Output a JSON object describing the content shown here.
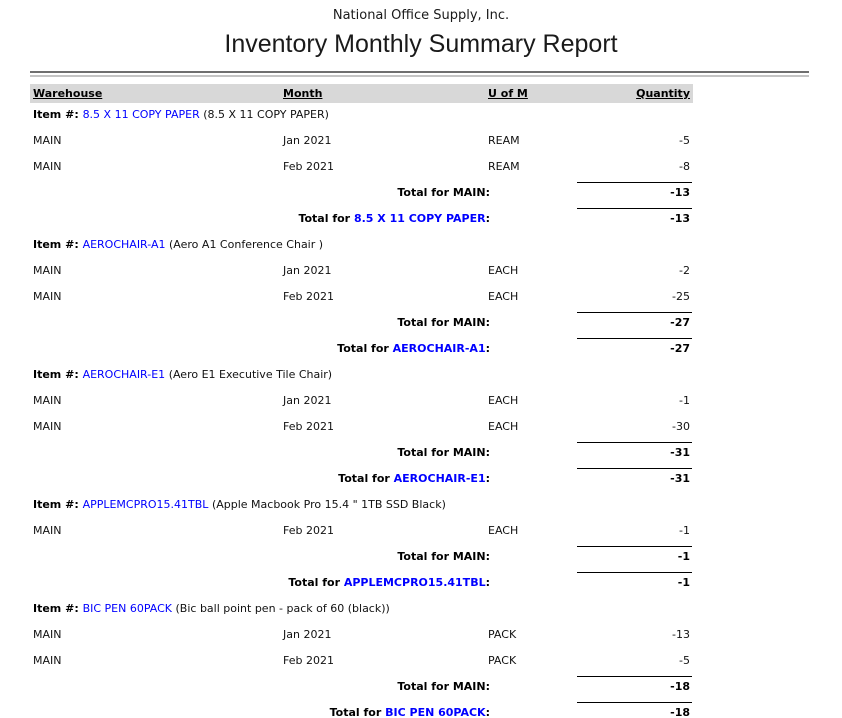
{
  "page": {
    "company": "National Office Supply, Inc.",
    "title": "Inventory Monthly Summary Report"
  },
  "colors": {
    "link_blue": "#0000ff",
    "header_bar_bg": "#d8d8d8",
    "rule_dark": "#6f6f6f",
    "rule_light": "#c4c4c4"
  },
  "table": {
    "headers": {
      "warehouse": "Warehouse",
      "month": "Month",
      "uofm": "U of M",
      "quantity": "Quantity"
    },
    "sections": [
      {
        "item": {
          "prefix": "Item #:",
          "code": "8.5 X 11 COPY PAPER",
          "desc": "(8.5 X 11 COPY PAPER)"
        },
        "rows": [
          {
            "warehouse": "MAIN",
            "month": "Jan 2021",
            "uofm": "REAM",
            "qty": "-5"
          },
          {
            "warehouse": "MAIN",
            "month": "Feb 2021",
            "uofm": "REAM",
            "qty": "-8"
          }
        ],
        "warehouse_total": {
          "label": "Total for MAIN:",
          "qty": "-13"
        },
        "item_total": {
          "prefix": "Total for ",
          "code": "8.5 X 11 COPY PAPER",
          "suffix": ":",
          "qty": "-13"
        }
      },
      {
        "item": {
          "prefix": "Item #:",
          "code": "AEROCHAIR-A1",
          "desc": "(Aero A1 Conference Chair )"
        },
        "rows": [
          {
            "warehouse": "MAIN",
            "month": "Jan 2021",
            "uofm": "EACH",
            "qty": "-2"
          },
          {
            "warehouse": "MAIN",
            "month": "Feb 2021",
            "uofm": "EACH",
            "qty": "-25"
          }
        ],
        "warehouse_total": {
          "label": "Total for MAIN:",
          "qty": "-27"
        },
        "item_total": {
          "prefix": "Total for ",
          "code": "AEROCHAIR-A1",
          "suffix": ":",
          "qty": "-27"
        }
      },
      {
        "item": {
          "prefix": "Item #:",
          "code": "AEROCHAIR-E1",
          "desc": "(Aero E1 Executive Tile Chair)"
        },
        "rows": [
          {
            "warehouse": "MAIN",
            "month": "Jan 2021",
            "uofm": "EACH",
            "qty": "-1"
          },
          {
            "warehouse": "MAIN",
            "month": "Feb 2021",
            "uofm": "EACH",
            "qty": "-30"
          }
        ],
        "warehouse_total": {
          "label": "Total for MAIN:",
          "qty": "-31"
        },
        "item_total": {
          "prefix": "Total for ",
          "code": "AEROCHAIR-E1",
          "suffix": ":",
          "qty": "-31"
        }
      },
      {
        "item": {
          "prefix": "Item #:",
          "code": "APPLEMCPRO15.41TBL",
          "desc": "(Apple Macbook Pro 15.4 \" 1TB SSD Black)"
        },
        "rows": [
          {
            "warehouse": "MAIN",
            "month": "Feb 2021",
            "uofm": "EACH",
            "qty": "-1"
          }
        ],
        "warehouse_total": {
          "label": "Total for MAIN:",
          "qty": "-1"
        },
        "item_total": {
          "prefix": "Total for ",
          "code": "APPLEMCPRO15.41TBL",
          "suffix": ":",
          "qty": "-1"
        }
      },
      {
        "item": {
          "prefix": "Item #:",
          "code": "BIC PEN 60PACK",
          "desc": "(Bic ball point pen - pack of 60 (black))"
        },
        "rows": [
          {
            "warehouse": "MAIN",
            "month": "Jan 2021",
            "uofm": "PACK",
            "qty": "-13"
          },
          {
            "warehouse": "MAIN",
            "month": "Feb 2021",
            "uofm": "PACK",
            "qty": "-5"
          }
        ],
        "warehouse_total": {
          "label": "Total for MAIN:",
          "qty": "-18"
        },
        "item_total": {
          "prefix": "Total for ",
          "code": "BIC PEN 60PACK",
          "suffix": ":",
          "qty": "-18"
        }
      }
    ]
  }
}
